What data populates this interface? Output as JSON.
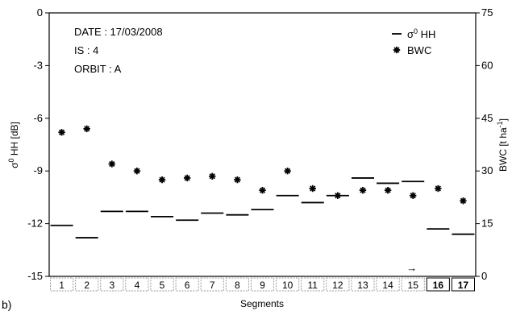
{
  "chart_data": {
    "type": "scatter",
    "categories": [
      "1",
      "2",
      "3",
      "4",
      "5",
      "6",
      "7",
      "8",
      "9",
      "10",
      "11",
      "12",
      "13",
      "14",
      "15",
      "16",
      "17"
    ],
    "category_styles": [
      "gray",
      "gray",
      "gray",
      "gray",
      "gray",
      "gray",
      "gray",
      "gray",
      "gray",
      "gray",
      "gray",
      "gray",
      "gray",
      "gray",
      "gray",
      "black",
      "black"
    ],
    "xlabel": "Segments",
    "ylabel_left_prefix": "σ",
    "ylabel_left_sup": "0",
    "ylabel_left_suffix": " HH  [dB]",
    "ylabel_right_prefix": "BWC  [t ha",
    "ylabel_right_sup": "-1",
    "ylabel_right_suffix": "]",
    "ylim_left": [
      -15,
      0
    ],
    "ylim_right": [
      0,
      75
    ],
    "left_ticks": [
      "0",
      "-3",
      "-6",
      "-9",
      "-12",
      "-15"
    ],
    "left_tick_values": [
      0,
      -3,
      -6,
      -9,
      -12,
      -15
    ],
    "right_ticks": [
      "75",
      "60",
      "45",
      "30",
      "15",
      "0"
    ],
    "right_tick_values": [
      75,
      60,
      45,
      30,
      15,
      0
    ],
    "annotations": [
      "DATE : 17/03/2008",
      "IS : 4",
      "ORBIT : A"
    ],
    "legend_position": "top-right",
    "panel_label": "b)",
    "arrow_glyph": "→",
    "arrow_segment": 15,
    "series": [
      {
        "name_prefix": "σ",
        "name_sup": "0",
        "name_suffix": " HH",
        "marker": "dash",
        "axis": "left",
        "values": [
          -12.1,
          -12.8,
          -11.3,
          -11.3,
          -11.6,
          -11.8,
          -11.4,
          -11.5,
          -11.2,
          -10.4,
          -10.8,
          -10.4,
          -9.4,
          -9.7,
          -9.6,
          -12.3,
          -12.6
        ]
      },
      {
        "name": "BWC",
        "marker": "asterisk",
        "axis": "right",
        "values": [
          41,
          42,
          32,
          30,
          27.5,
          28,
          28.5,
          27.5,
          24.5,
          30,
          25,
          23,
          24.5,
          24.5,
          23,
          25,
          21.5
        ]
      }
    ]
  },
  "colors": {
    "axis": "#000000",
    "segment_gray": "#999999",
    "segment_black": "#000000"
  }
}
